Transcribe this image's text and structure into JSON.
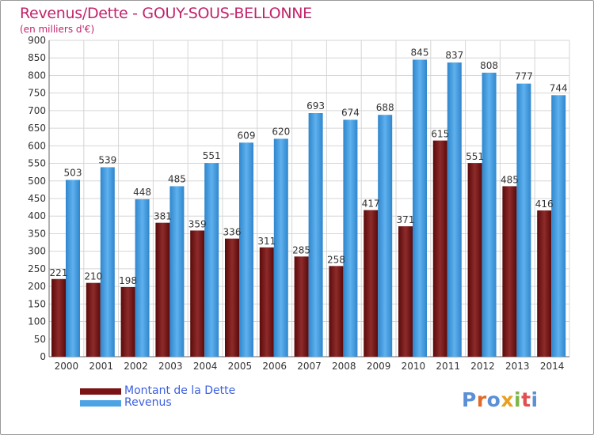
{
  "title": "Revenus/Dette - GOUY-SOUS-BELLONNE",
  "subtitle": "(en milliers d'€)",
  "legend": [
    {
      "label": "Montant de la Dette",
      "color": "#7a1414"
    },
    {
      "label": "Revenus",
      "color": "#4ea3e5"
    }
  ],
  "logo_text": "Proxiti",
  "logo_colors": [
    "#5b8fd6",
    "#e06a2a",
    "#5b8fd6",
    "#e8a020",
    "#7ab648",
    "#e05050",
    "#5b8fd6"
  ],
  "chart_data": {
    "type": "bar",
    "categories": [
      "2000",
      "2001",
      "2002",
      "2003",
      "2004",
      "2005",
      "2006",
      "2007",
      "2008",
      "2009",
      "2010",
      "2011",
      "2012",
      "2013",
      "2014"
    ],
    "series": [
      {
        "name": "Montant de la Dette",
        "color": "#7a1414",
        "values": [
          221,
          210,
          198,
          381,
          359,
          336,
          311,
          285,
          258,
          417,
          371,
          615,
          551,
          485,
          416
        ]
      },
      {
        "name": "Revenus",
        "color": "#4ea3e5",
        "values": [
          503,
          539,
          448,
          485,
          551,
          609,
          620,
          693,
          674,
          688,
          845,
          837,
          808,
          777,
          744
        ]
      }
    ],
    "ylim": [
      0,
      900
    ],
    "ytick_step": 50,
    "grid": true
  }
}
